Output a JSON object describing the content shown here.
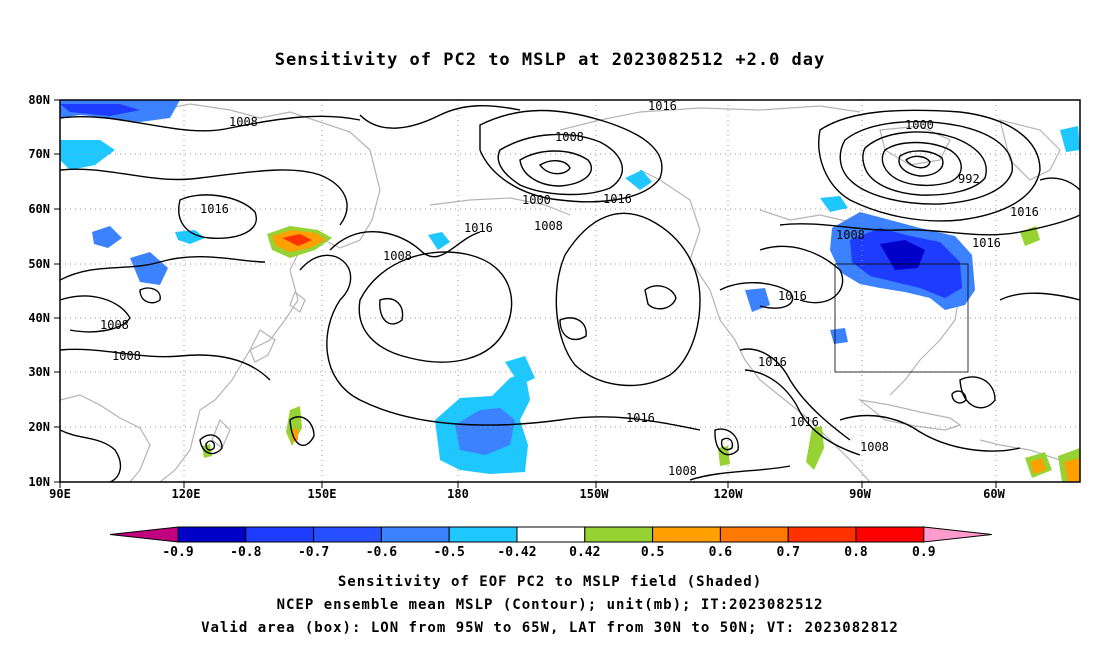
{
  "title": "Sensitivity of PC2 to MSLP at 2023082512 +2.0 day",
  "map": {
    "lat_labels": [
      "80N",
      "70N",
      "60N",
      "50N",
      "40N",
      "30N",
      "20N",
      "10N"
    ],
    "lon_labels": [
      "90E",
      "120E",
      "150E",
      "180",
      "150W",
      "120W",
      "90W",
      "60W"
    ],
    "contour_labels": [
      {
        "text": "1016"
      },
      {
        "text": "1008"
      },
      {
        "text": "1000"
      },
      {
        "text": "992"
      },
      {
        "text": "1008"
      },
      {
        "text": "1016"
      },
      {
        "text": "1008"
      },
      {
        "text": "1000"
      },
      {
        "text": "1008"
      },
      {
        "text": "1016"
      },
      {
        "text": "1016"
      },
      {
        "text": "1008"
      },
      {
        "text": "1016"
      },
      {
        "text": "1016"
      },
      {
        "text": "1008"
      },
      {
        "text": "1008"
      },
      {
        "text": "1016"
      },
      {
        "text": "1016"
      },
      {
        "text": "1016"
      },
      {
        "text": "1008"
      },
      {
        "text": "1008"
      },
      {
        "text": "1016"
      }
    ],
    "valid_box": {
      "lon_from": "95W",
      "lon_to": "65W",
      "lat_from": "30N",
      "lat_to": "50N"
    },
    "colors": {
      "land": "#b4b4b4",
      "contour": "#000000",
      "grid": "#9a9a9a"
    }
  },
  "colorbar": {
    "labels": [
      "-0.9",
      "-0.8",
      "-0.7",
      "-0.6",
      "-0.5",
      "-0.42",
      "0.42",
      "0.5",
      "0.6",
      "0.7",
      "0.8",
      "0.9"
    ],
    "colors": [
      "#c0007e",
      "#0000c8",
      "#1e3cff",
      "#2850ff",
      "#3c82ff",
      "#1ec8ff",
      "#ffffff",
      "#96d232",
      "#ffa000",
      "#ff7800",
      "#ff3200",
      "#ff0000",
      "#ff9ccd"
    ]
  },
  "captions": [
    "Sensitivity of EOF PC2 to MSLP field (Shaded)",
    "NCEP ensemble mean MSLP (Contour); unit(mb); IT:2023082512",
    "Valid area (box): LON from 95W to 65W, LAT from 30N to 50N; VT: 2023082812"
  ]
}
